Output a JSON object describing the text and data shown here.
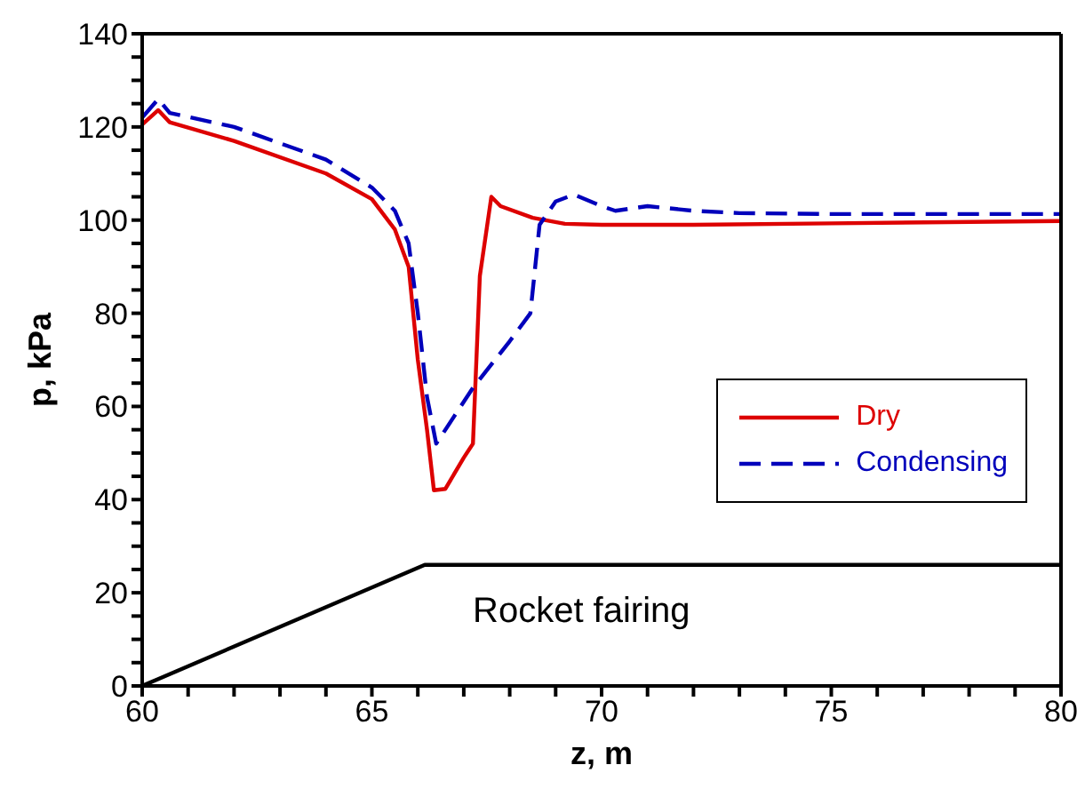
{
  "chart_data": {
    "type": "line",
    "xlabel": "z, m",
    "ylabel": "p, kPa",
    "xlim": [
      60,
      80
    ],
    "ylim": [
      0,
      140
    ],
    "xticks": [
      60,
      {
        "value": 61,
        "label": null
      },
      {
        "value": 62,
        "label": null
      },
      {
        "value": 63,
        "label": null
      },
      {
        "value": 64,
        "label": null
      },
      65,
      {
        "value": 66,
        "label": null
      },
      {
        "value": 67,
        "label": null
      },
      {
        "value": 68,
        "label": null
      },
      {
        "value": 69,
        "label": null
      },
      70,
      {
        "value": 71,
        "label": null
      },
      {
        "value": 72,
        "label": null
      },
      {
        "value": 73,
        "label": null
      },
      {
        "value": 74,
        "label": null
      },
      75,
      {
        "value": 76,
        "label": null
      },
      {
        "value": 77,
        "label": null
      },
      {
        "value": 78,
        "label": null
      },
      {
        "value": 79,
        "label": null
      },
      80
    ],
    "yticks": [
      0,
      {
        "value": 5,
        "label": null
      },
      {
        "value": 10,
        "label": null
      },
      {
        "value": 15,
        "label": null
      },
      20,
      {
        "value": 25,
        "label": null
      },
      {
        "value": 30,
        "label": null
      },
      {
        "value": 35,
        "label": null
      },
      40,
      {
        "value": 45,
        "label": null
      },
      {
        "value": 50,
        "label": null
      },
      {
        "value": 55,
        "label": null
      },
      60,
      {
        "value": 65,
        "label": null
      },
      {
        "value": 70,
        "label": null
      },
      {
        "value": 75,
        "label": null
      },
      80,
      {
        "value": 85,
        "label": null
      },
      {
        "value": 90,
        "label": null
      },
      {
        "value": 95,
        "label": null
      },
      100,
      {
        "value": 105,
        "label": null
      },
      {
        "value": 110,
        "label": null
      },
      {
        "value": 115,
        "label": null
      },
      120,
      {
        "value": 125,
        "label": null
      },
      {
        "value": 130,
        "label": null
      },
      {
        "value": 135,
        "label": null
      },
      140
    ],
    "legend": "right",
    "marker": "none",
    "annotations": [
      "Rocket fairing"
    ],
    "series": [
      {
        "name": "Dry",
        "color": "#dd0000",
        "line_style": "solid",
        "x": [
          60,
          60.35,
          60.6,
          62,
          64,
          65,
          65.5,
          65.8,
          66.0,
          66.2,
          66.35,
          66.6,
          67.0,
          67.2,
          67.35,
          67.6,
          67.8,
          68.5,
          69.2,
          70,
          72,
          75,
          80
        ],
        "values": [
          120.5,
          123.6,
          121,
          117,
          110,
          104.5,
          98,
          90,
          70,
          55,
          42,
          42.3,
          49,
          52,
          88,
          105,
          103,
          100.5,
          99.2,
          99,
          99,
          99.3,
          99.8
        ]
      },
      {
        "name": "Condensing",
        "color": "#0000bb",
        "line_style": "dashed",
        "x": [
          60,
          60.35,
          60.6,
          62,
          64,
          65,
          65.5,
          65.8,
          66.0,
          66.2,
          66.4,
          66.8,
          67.2,
          68,
          68.45,
          68.65,
          69.0,
          69.4,
          70.0,
          70.3,
          71,
          72,
          73,
          75,
          80
        ],
        "values": [
          122,
          126,
          123,
          120,
          113,
          107,
          102,
          95,
          80,
          62,
          52,
          58,
          64,
          74,
          80,
          99,
          104,
          105.5,
          103,
          102,
          103,
          102,
          101.5,
          101.3,
          101.3
        ]
      },
      {
        "color": "#000000",
        "line_style": "solid",
        "x": [
          60,
          66.15,
          80
        ],
        "values": [
          0,
          26,
          26
        ]
      }
    ]
  }
}
